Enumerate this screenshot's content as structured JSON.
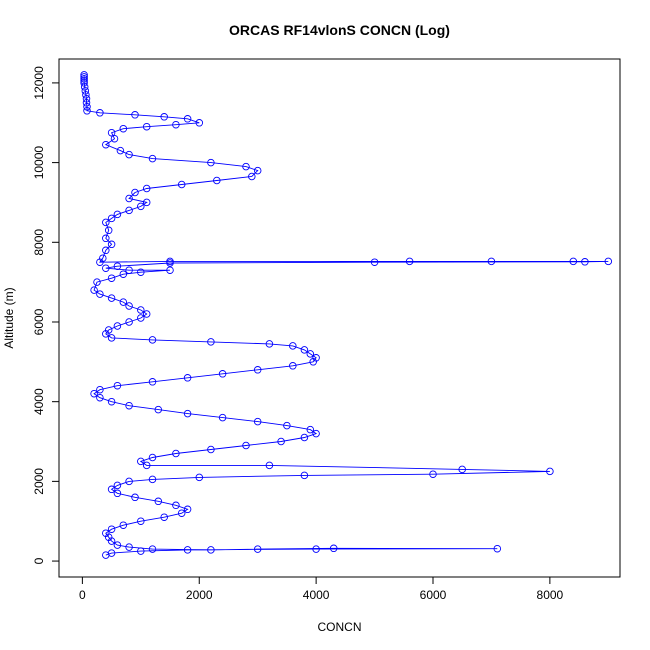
{
  "chart_data": {
    "type": "line",
    "title": "ORCAS RF14vlonS CONCN (Log)",
    "xlabel": "CONCN",
    "ylabel": "Altitude (m)",
    "xlim": [
      -400,
      9200
    ],
    "ylim": [
      -400,
      12600
    ],
    "xticks": [
      0,
      2000,
      4000,
      6000,
      8000
    ],
    "yticks": [
      0,
      2000,
      4000,
      6000,
      8000,
      10000,
      12000
    ],
    "grid": false,
    "marker": "open-circle",
    "series": [
      {
        "color": "#0000ff",
        "points": [
          [
            30,
            12200
          ],
          [
            30,
            12150
          ],
          [
            30,
            12100
          ],
          [
            30,
            12050
          ],
          [
            30,
            12000
          ],
          [
            40,
            11900
          ],
          [
            50,
            11800
          ],
          [
            60,
            11700
          ],
          [
            70,
            11600
          ],
          [
            70,
            11500
          ],
          [
            80,
            11400
          ],
          [
            80,
            11300
          ],
          [
            300,
            11250
          ],
          [
            900,
            11200
          ],
          [
            1400,
            11150
          ],
          [
            1800,
            11100
          ],
          [
            2000,
            11000
          ],
          [
            1600,
            10950
          ],
          [
            1100,
            10900
          ],
          [
            700,
            10850
          ],
          [
            500,
            10750
          ],
          [
            550,
            10600
          ],
          [
            400,
            10450
          ],
          [
            650,
            10300
          ],
          [
            800,
            10200
          ],
          [
            1200,
            10100
          ],
          [
            2200,
            10000
          ],
          [
            2800,
            9900
          ],
          [
            3000,
            9800
          ],
          [
            2900,
            9650
          ],
          [
            2300,
            9550
          ],
          [
            1700,
            9450
          ],
          [
            1100,
            9350
          ],
          [
            900,
            9250
          ],
          [
            800,
            9100
          ],
          [
            1100,
            9000
          ],
          [
            1000,
            8900
          ],
          [
            800,
            8800
          ],
          [
            600,
            8700
          ],
          [
            500,
            8600
          ],
          [
            400,
            8500
          ],
          [
            450,
            8300
          ],
          [
            400,
            8100
          ],
          [
            500,
            7950
          ],
          [
            400,
            7800
          ],
          [
            350,
            7600
          ],
          [
            300,
            7500
          ],
          [
            1500,
            7520
          ],
          [
            5600,
            7520
          ],
          [
            7000,
            7520
          ],
          [
            8400,
            7520
          ],
          [
            9000,
            7520
          ],
          [
            8600,
            7510
          ],
          [
            5000,
            7500
          ],
          [
            1500,
            7480
          ],
          [
            600,
            7400
          ],
          [
            400,
            7350
          ],
          [
            800,
            7300
          ],
          [
            1500,
            7300
          ],
          [
            1000,
            7250
          ],
          [
            700,
            7200
          ],
          [
            500,
            7100
          ],
          [
            250,
            7000
          ],
          [
            200,
            6800
          ],
          [
            300,
            6700
          ],
          [
            500,
            6600
          ],
          [
            700,
            6500
          ],
          [
            800,
            6400
          ],
          [
            1000,
            6300
          ],
          [
            1100,
            6200
          ],
          [
            1000,
            6100
          ],
          [
            800,
            6000
          ],
          [
            600,
            5900
          ],
          [
            450,
            5800
          ],
          [
            400,
            5700
          ],
          [
            500,
            5600
          ],
          [
            1200,
            5550
          ],
          [
            2200,
            5500
          ],
          [
            3200,
            5450
          ],
          [
            3600,
            5400
          ],
          [
            3800,
            5300
          ],
          [
            3900,
            5200
          ],
          [
            4000,
            5100
          ],
          [
            3950,
            5000
          ],
          [
            3600,
            4900
          ],
          [
            3000,
            4800
          ],
          [
            2400,
            4700
          ],
          [
            1800,
            4600
          ],
          [
            1200,
            4500
          ],
          [
            600,
            4400
          ],
          [
            300,
            4300
          ],
          [
            200,
            4200
          ],
          [
            300,
            4100
          ],
          [
            500,
            4000
          ],
          [
            800,
            3900
          ],
          [
            1300,
            3800
          ],
          [
            1800,
            3700
          ],
          [
            2400,
            3600
          ],
          [
            3000,
            3500
          ],
          [
            3500,
            3400
          ],
          [
            3900,
            3300
          ],
          [
            4000,
            3200
          ],
          [
            3800,
            3100
          ],
          [
            3400,
            3000
          ],
          [
            2800,
            2900
          ],
          [
            2200,
            2800
          ],
          [
            1600,
            2700
          ],
          [
            1200,
            2600
          ],
          [
            1000,
            2500
          ],
          [
            1100,
            2400
          ],
          [
            3200,
            2400
          ],
          [
            6500,
            2300
          ],
          [
            8000,
            2250
          ],
          [
            6000,
            2180
          ],
          [
            3800,
            2150
          ],
          [
            2000,
            2100
          ],
          [
            1200,
            2050
          ],
          [
            800,
            2000
          ],
          [
            600,
            1900
          ],
          [
            500,
            1800
          ],
          [
            600,
            1700
          ],
          [
            900,
            1600
          ],
          [
            1300,
            1500
          ],
          [
            1600,
            1400
          ],
          [
            1800,
            1300
          ],
          [
            1700,
            1200
          ],
          [
            1400,
            1100
          ],
          [
            1000,
            1000
          ],
          [
            700,
            900
          ],
          [
            500,
            800
          ],
          [
            400,
            700
          ],
          [
            450,
            600
          ],
          [
            500,
            500
          ],
          [
            600,
            400
          ],
          [
            800,
            350
          ],
          [
            1200,
            300
          ],
          [
            2200,
            280
          ],
          [
            3000,
            300
          ],
          [
            4300,
            320
          ],
          [
            7100,
            310
          ],
          [
            4000,
            300
          ],
          [
            1800,
            280
          ],
          [
            1000,
            250
          ],
          [
            500,
            200
          ],
          [
            400,
            150
          ]
        ]
      }
    ]
  }
}
